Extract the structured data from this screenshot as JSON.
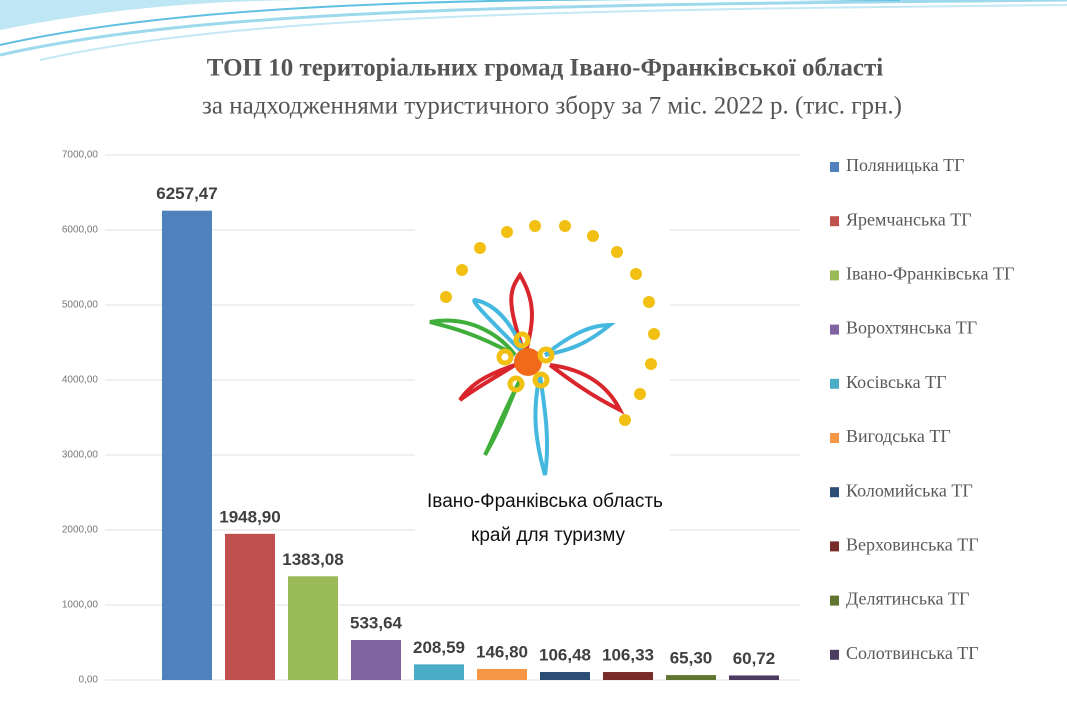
{
  "chart_data": {
    "type": "bar",
    "title": "ТОП 10 територіальних громад Івано-Франківської області",
    "subtitle": "за надходженнями туристичного збору за 7 міс. 2022 р. (тис. грн.)",
    "annotations": [
      "Івано-Франківська область",
      "край для туризму"
    ],
    "series": [
      {
        "name": "Поляницька ТГ",
        "color": "#4f81bd",
        "values": [
          6257.47
        ],
        "value_labels": [
          "6257,47"
        ]
      },
      {
        "name": "Яремчанська ТГ",
        "color": "#c0504d",
        "values": [
          1948.9
        ],
        "value_labels": [
          "1948,90"
        ]
      },
      {
        "name": "Івано-Франківська ТГ",
        "color": "#9bbb59",
        "values": [
          1383.08
        ],
        "value_labels": [
          "1383,08"
        ]
      },
      {
        "name": "Ворохтянська ТГ",
        "color": "#8064a2",
        "values": [
          533.64
        ],
        "value_labels": [
          "533,64"
        ]
      },
      {
        "name": "Косівська ТГ",
        "color": "#4bacc6",
        "values": [
          208.59
        ],
        "value_labels": [
          "208,59"
        ]
      },
      {
        "name": "Вигодська ТГ",
        "color": "#f79646",
        "values": [
          146.8
        ],
        "value_labels": [
          "146,80"
        ]
      },
      {
        "name": "Коломийська ТГ",
        "color": "#2c4d75",
        "values": [
          106.48
        ],
        "value_labels": [
          "106,48"
        ]
      },
      {
        "name": "Верховинська ТГ",
        "color": "#772c2a",
        "values": [
          106.33
        ],
        "value_labels": [
          "106,33"
        ]
      },
      {
        "name": "Делятинська ТГ",
        "color": "#5f7530",
        "values": [
          65.3
        ],
        "value_labels": [
          "65,30"
        ]
      },
      {
        "name": "Солотвинська ТГ",
        "color": "#4d3b62",
        "values": [
          60.72
        ],
        "value_labels": [
          "60,72"
        ]
      }
    ],
    "ylim": [
      0,
      7000
    ],
    "yticks": [
      {
        "value": 0,
        "label": "0,00"
      },
      {
        "value": 1000,
        "label": "1000,00"
      },
      {
        "value": 2000,
        "label": "2000,00"
      },
      {
        "value": 3000,
        "label": "3000,00"
      },
      {
        "value": 4000,
        "label": "4000,00"
      },
      {
        "value": 5000,
        "label": "5000,00"
      },
      {
        "value": 6000,
        "label": "6000,00"
      },
      {
        "value": 7000,
        "label": "7000,00"
      }
    ],
    "grid": true,
    "legend": "right"
  }
}
